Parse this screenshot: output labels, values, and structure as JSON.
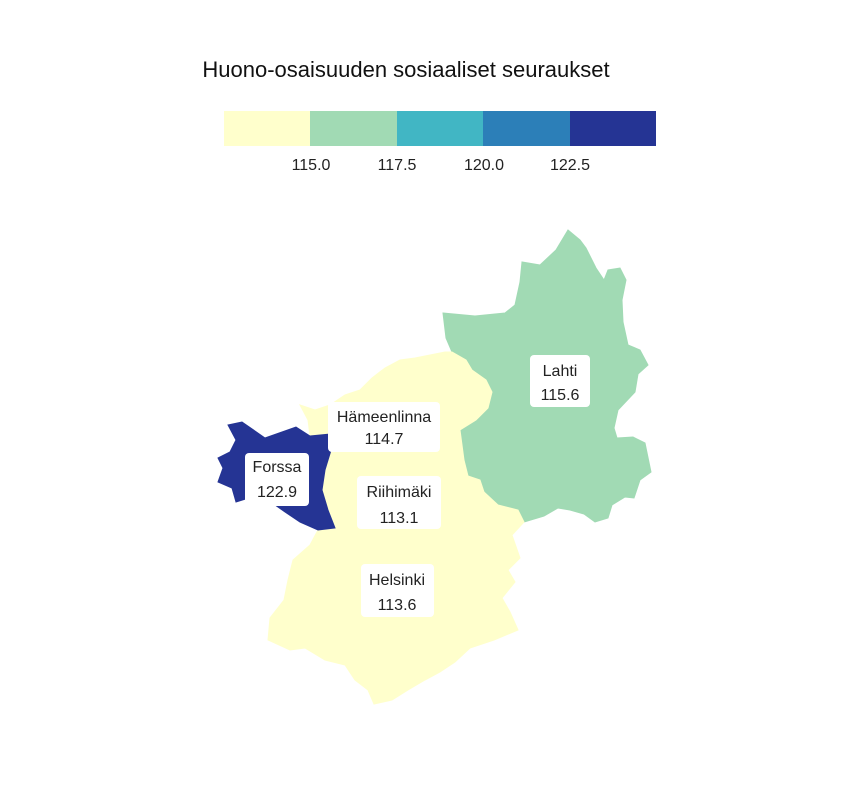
{
  "chart_data": {
    "type": "choropleth",
    "title": "Huono-osaisuuden sosiaaliset seuraukset",
    "legend": {
      "colors": [
        "#ffffcc",
        "#a1dab4",
        "#41b6c4",
        "#2c7fb8",
        "#253494"
      ],
      "breaks": [
        115.0,
        117.5,
        120.0,
        122.5
      ],
      "tick_labels": [
        "115.0",
        "117.5",
        "120.0",
        "122.5"
      ]
    },
    "regions": [
      {
        "id": "lahti",
        "name": "Lahti",
        "value": 115.6,
        "value_label": "115.6"
      },
      {
        "id": "hameenlinna",
        "name": "Hämeenlinna",
        "value": 114.7,
        "value_label": "114.7"
      },
      {
        "id": "forssa",
        "name": "Forssa",
        "value": 122.9,
        "value_label": "122.9"
      },
      {
        "id": "riihimaki",
        "name": "Riihimäki",
        "value": 113.1,
        "value_label": "113.1"
      },
      {
        "id": "helsinki",
        "name": "Helsinki",
        "value": 113.6,
        "value_label": "113.6"
      }
    ]
  }
}
